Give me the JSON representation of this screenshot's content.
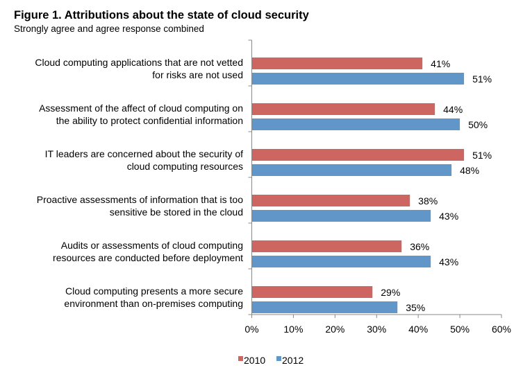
{
  "chart_data": {
    "type": "bar",
    "orientation": "horizontal",
    "title": "Figure 1. Attributions about the state of cloud security",
    "subtitle": "Strongly agree and agree response combined",
    "categories": [
      [
        "Cloud computing applications that are not vetted",
        "for risks are not used"
      ],
      [
        "Assessment of the affect of cloud computing on",
        "the ability to protect confidential information"
      ],
      [
        "IT leaders are concerned about the security of",
        "cloud computing resources"
      ],
      [
        "Proactive assessments of information that is too",
        "sensitive be stored in the cloud"
      ],
      [
        "Audits or assessments of cloud computing",
        "resources are conducted before deployment"
      ],
      [
        "Cloud computing presents a more secure",
        "environment than on-premises computing"
      ]
    ],
    "series": [
      {
        "name": "2010",
        "color": "#cd6660",
        "values": [
          41,
          44,
          51,
          38,
          36,
          29
        ]
      },
      {
        "name": "2012",
        "color": "#6196c9",
        "values": [
          51,
          50,
          48,
          43,
          43,
          35
        ]
      }
    ],
    "xlim": [
      0,
      60
    ],
    "xticks": [
      "0%",
      "10%",
      "20%",
      "30%",
      "40%",
      "50%",
      "60%"
    ],
    "value_suffix": "%",
    "grid": false,
    "legend": "bottom-center"
  }
}
